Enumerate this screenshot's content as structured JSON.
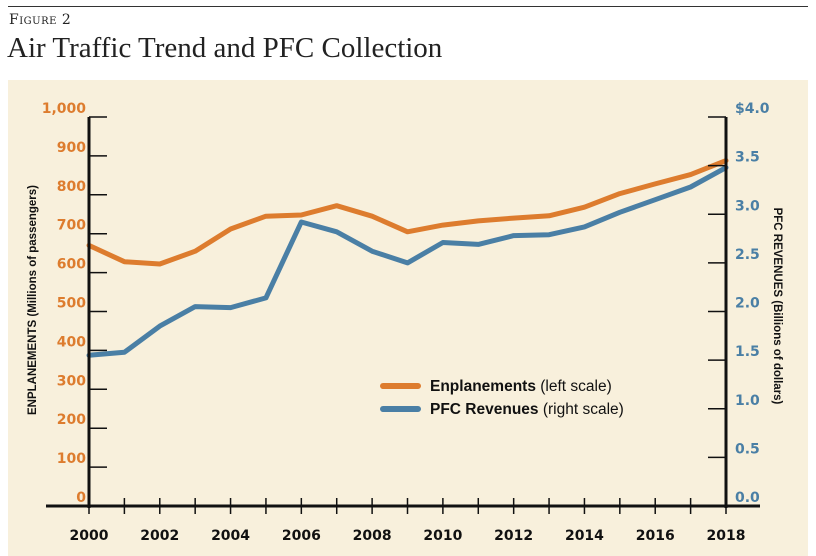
{
  "figure_label": "Figure 2",
  "chart_data": {
    "type": "line",
    "title": "Air Traffic Trend and PFC Collection",
    "x": [
      2000,
      2001,
      2002,
      2003,
      2004,
      2005,
      2006,
      2007,
      2008,
      2009,
      2010,
      2011,
      2012,
      2013,
      2014,
      2015,
      2016,
      2017,
      2018
    ],
    "x_tick_labels": [
      "2000",
      "2002",
      "2004",
      "2006",
      "2008",
      "2010",
      "2012",
      "2014",
      "2016",
      "2018"
    ],
    "xlim": [
      2000,
      2018
    ],
    "series": [
      {
        "name": "Enplanements",
        "note": "(left scale)",
        "axis": "left",
        "color": "#dd7c2e",
        "values": [
          670,
          628,
          622,
          655,
          712,
          745,
          748,
          772,
          745,
          705,
          722,
          733,
          740,
          746,
          768,
          803,
          828,
          852,
          888
        ]
      },
      {
        "name": "PFC Revenues",
        "note": "(right scale)",
        "axis": "right",
        "color": "#4a7fa5",
        "values": [
          1.55,
          1.58,
          1.85,
          2.05,
          2.04,
          2.14,
          2.92,
          2.82,
          2.62,
          2.5,
          2.71,
          2.69,
          2.78,
          2.79,
          2.87,
          3.02,
          3.15,
          3.28,
          3.48
        ]
      }
    ],
    "y_left": {
      "label": "ENPLANEMENTS (Millions of passengers)",
      "ylim": [
        0,
        1000
      ],
      "tick_labels": [
        "0",
        "100",
        "200",
        "300",
        "400",
        "500",
        "600",
        "700",
        "800",
        "900",
        "1,000"
      ]
    },
    "y_right": {
      "label": "PFC REVENUES (Billions of dollars)",
      "ylim": [
        0,
        4
      ],
      "tick_labels": [
        "0.0",
        "0.5",
        "1.0",
        "1.5",
        "2.0",
        "2.5",
        "3.0",
        "3.5",
        "$4.0"
      ]
    },
    "grid": false,
    "legend_position": "center-right"
  }
}
